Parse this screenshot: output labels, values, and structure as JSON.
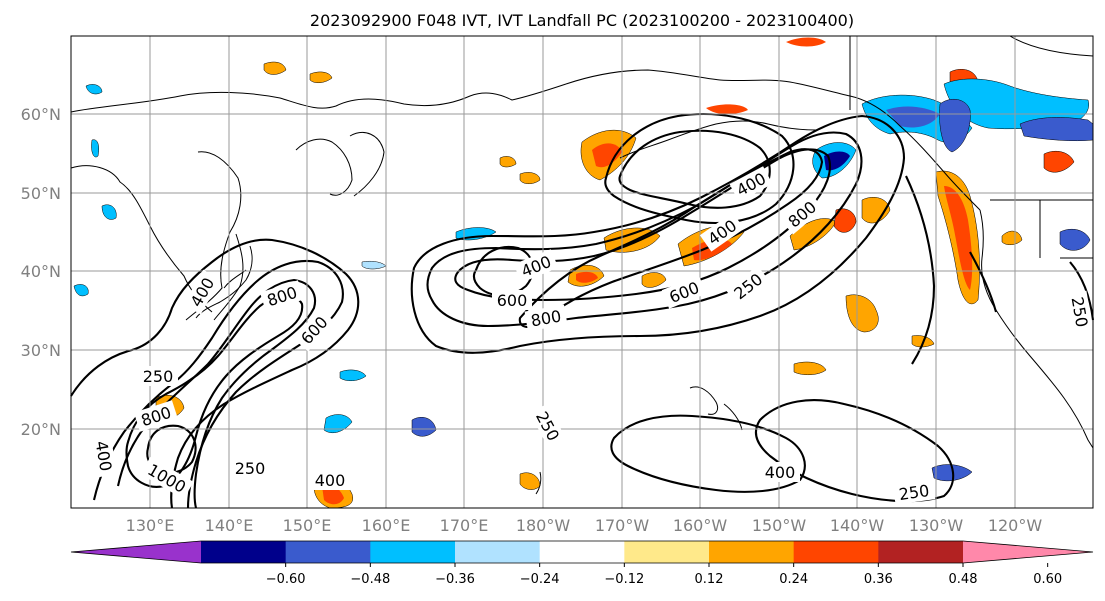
{
  "title": "2023092900 F048 IVT, IVT Landfall PC (2023100200 - 2023100400)",
  "lat_labels": [
    "60°N",
    "50°N",
    "40°N",
    "30°N",
    "20°N"
  ],
  "lon_labels": [
    "130°E",
    "140°E",
    "150°E",
    "160°E",
    "170°E",
    "180°W",
    "170°W",
    "160°W",
    "150°W",
    "140°W",
    "130°W",
    "120°W"
  ],
  "colorbar": {
    "colors": [
      "#9932cc",
      "#00008b",
      "#3a5bcd",
      "#00bfff",
      "#b0e2ff",
      "#ffffff",
      "#ffe98a",
      "#ffa500",
      "#ff4500",
      "#b22222",
      "#ff88aa"
    ],
    "tick_labels": [
      "−0.60",
      "−0.48",
      "−0.36",
      "−0.24",
      "−0.12",
      "0.12",
      "0.24",
      "0.36",
      "0.48",
      "0.60"
    ]
  },
  "contour_labels": [
    "250",
    "400",
    "600",
    "800",
    "1000"
  ],
  "chart_data": {
    "type": "contour",
    "fields": [
      "IVT",
      "IVT Landfall PC"
    ],
    "ivt_contour_levels": [
      250,
      400,
      600,
      800,
      1000
    ],
    "pc_levels": [
      -0.6,
      -0.48,
      -0.36,
      -0.24,
      -0.12,
      0.12,
      0.24,
      0.36,
      0.48,
      0.6
    ],
    "lat_range": [
      10,
      70
    ],
    "lon_range": [
      120,
      250
    ],
    "grid": true,
    "colorbar_position": "bottom"
  }
}
